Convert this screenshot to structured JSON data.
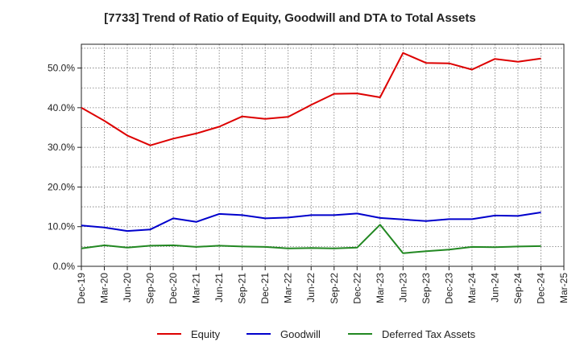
{
  "title": "[7733]  Trend of Ratio of Equity, Goodwill and DTA to Total Assets",
  "chart_data": {
    "type": "line",
    "categories": [
      "Dec-19",
      "Mar-20",
      "Jun-20",
      "Sep-20",
      "Dec-20",
      "Mar-21",
      "Jun-21",
      "Sep-21",
      "Dec-21",
      "Mar-22",
      "Jun-22",
      "Sep-22",
      "Dec-22",
      "Mar-23",
      "Jun-23",
      "Sep-23",
      "Dec-23",
      "Mar-24",
      "Jun-24",
      "Sep-24",
      "Dec-24",
      "Mar-25"
    ],
    "y_ticks": [
      "0.0%",
      "10.0%",
      "20.0%",
      "30.0%",
      "40.0%",
      "50.0%"
    ],
    "y_tick_values": [
      0,
      10,
      20,
      30,
      40,
      50
    ],
    "ylim": [
      0,
      56
    ],
    "grid": true,
    "legend_position": "bottom",
    "series": [
      {
        "name": "Equity",
        "color": "#dd0000",
        "values": [
          40.0,
          36.7,
          33.0,
          30.5,
          32.2,
          33.5,
          35.2,
          37.8,
          37.2,
          37.7,
          40.7,
          43.5,
          43.6,
          42.6,
          53.8,
          51.3,
          51.2,
          49.6,
          52.3,
          51.6,
          52.4,
          null
        ]
      },
      {
        "name": "Goodwill",
        "color": "#0000cc",
        "values": [
          10.3,
          9.8,
          8.9,
          9.3,
          12.1,
          11.2,
          13.2,
          12.9,
          12.1,
          12.3,
          12.9,
          12.9,
          13.3,
          12.2,
          11.8,
          11.4,
          11.9,
          11.9,
          12.8,
          12.7,
          13.6,
          null
        ]
      },
      {
        "name": "Deferred Tax Assets",
        "color": "#228822",
        "values": [
          4.5,
          5.3,
          4.7,
          5.2,
          5.3,
          4.9,
          5.2,
          5.0,
          4.9,
          4.5,
          4.6,
          4.5,
          4.7,
          10.5,
          3.3,
          3.8,
          4.2,
          4.9,
          4.8,
          5.0,
          5.1,
          null
        ]
      }
    ]
  }
}
